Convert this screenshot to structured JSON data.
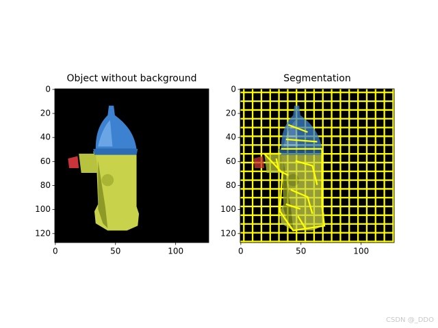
{
  "chart_data": [
    {
      "type": "image",
      "title": "Object without background",
      "xlim": [
        -0.5,
        127.5
      ],
      "ylim": [
        127.5,
        -0.5
      ],
      "xticks": [
        0,
        50,
        100
      ],
      "yticks": [
        0,
        20,
        40,
        60,
        80,
        100,
        120
      ]
    },
    {
      "type": "image",
      "title": "Segmentation",
      "xlim": [
        -0.5,
        127.5
      ],
      "ylim": [
        127.5,
        -0.5
      ],
      "xticks": [
        0,
        50,
        100
      ],
      "yticks": [
        0,
        20,
        40,
        60,
        80,
        100,
        120
      ]
    }
  ],
  "watermark": "CSDN @_DDO"
}
